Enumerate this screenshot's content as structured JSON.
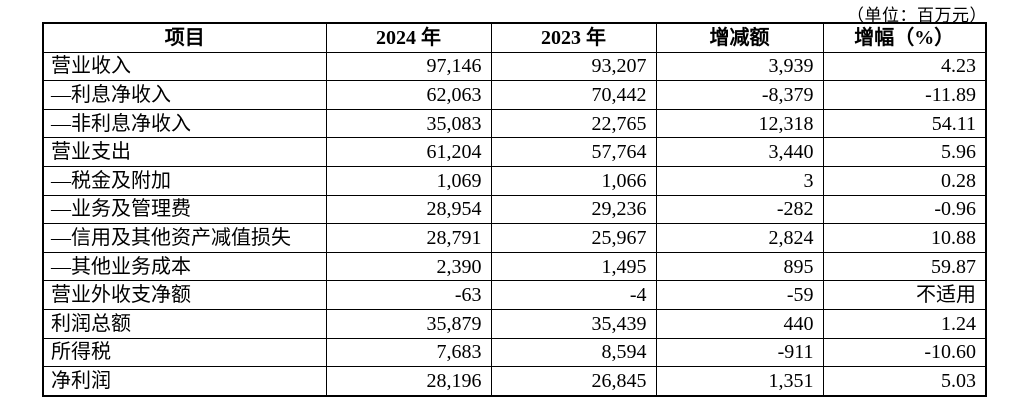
{
  "unit_note": "（单位：百万元）",
  "table": {
    "headers": [
      "项目",
      "2024 年",
      "2023 年",
      "增减额",
      "增幅（%）"
    ],
    "rows": [
      [
        "营业收入",
        "97,146",
        "93,207",
        "3,939",
        "4.23"
      ],
      [
        "—利息净收入",
        "62,063",
        "70,442",
        "-8,379",
        "-11.89"
      ],
      [
        "—非利息净收入",
        "35,083",
        "22,765",
        "12,318",
        "54.11"
      ],
      [
        "营业支出",
        "61,204",
        "57,764",
        "3,440",
        "5.96"
      ],
      [
        "—税金及附加",
        "1,069",
        "1,066",
        "3",
        "0.28"
      ],
      [
        "—业务及管理费",
        "28,954",
        "29,236",
        "-282",
        "-0.96"
      ],
      [
        "—信用及其他资产减值损失",
        "28,791",
        "25,967",
        "2,824",
        "10.88"
      ],
      [
        "—其他业务成本",
        "2,390",
        "1,495",
        "895",
        "59.87"
      ],
      [
        "营业外收支净额",
        "-63",
        "-4",
        "-59",
        "不适用"
      ],
      [
        "利润总额",
        "35,879",
        "35,439",
        "440",
        "1.24"
      ],
      [
        "所得税",
        "7,683",
        "8,594",
        "-911",
        "-10.60"
      ],
      [
        "净利润",
        "28,196",
        "26,845",
        "1,351",
        "5.03"
      ]
    ]
  }
}
